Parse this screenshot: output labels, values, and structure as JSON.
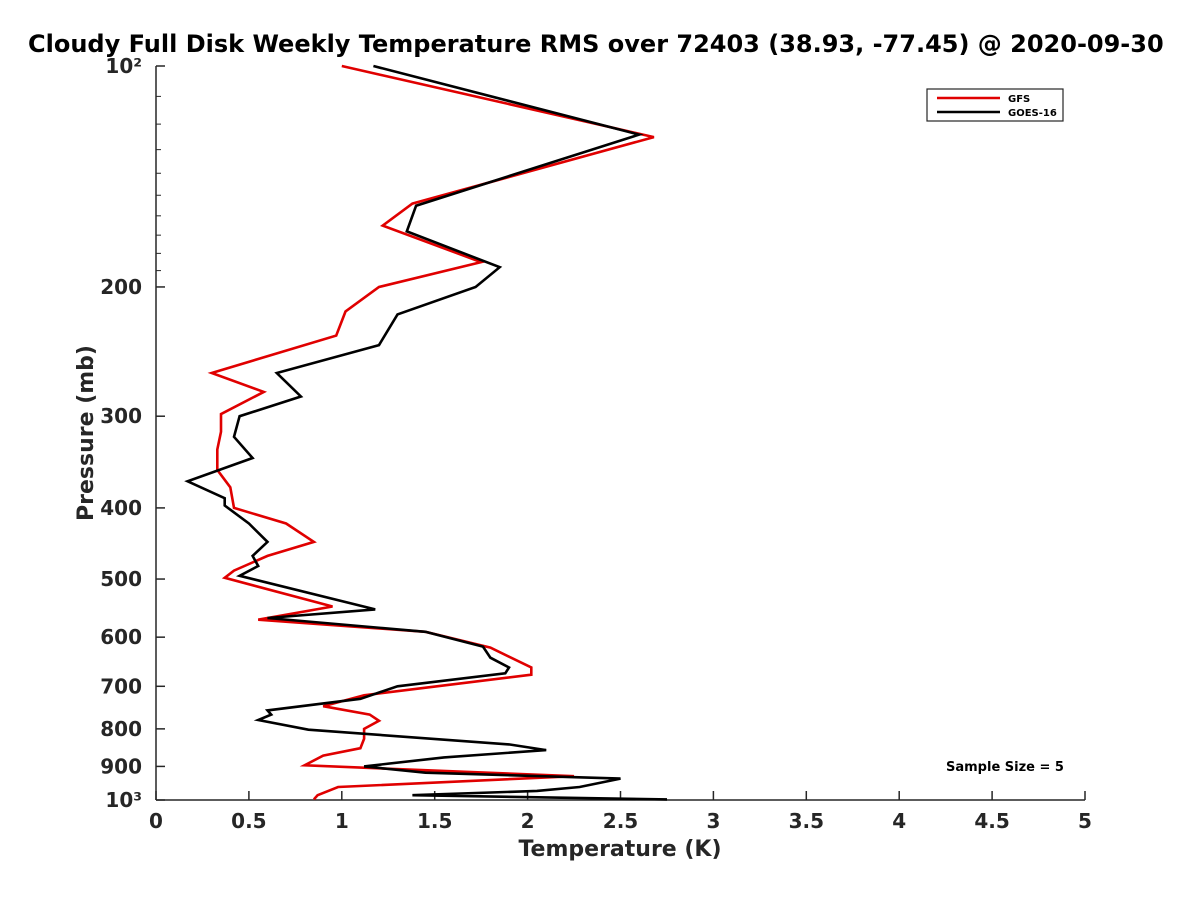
{
  "chart_data": {
    "type": "line",
    "title": "Cloudy Full Disk Weekly Temperature RMS over 72403 (38.93, -77.45) @ 2020-09-30",
    "xlabel": "Temperature (K)",
    "ylabel": "Pressure (mb)",
    "xlim": [
      0,
      5
    ],
    "ylim": [
      1000,
      100
    ],
    "yscale": "log",
    "xticks": [
      0,
      0.5,
      1,
      1.5,
      2,
      2.5,
      3,
      3.5,
      4,
      4.5,
      5
    ],
    "xtick_labels": [
      "0",
      "0.5",
      "1",
      "1.5",
      "2",
      "2.5",
      "3",
      "3.5",
      "4",
      "4.5",
      "5"
    ],
    "yticks": [
      100,
      200,
      300,
      400,
      500,
      600,
      700,
      800,
      900,
      1000
    ],
    "ytick_labels": [
      "10²",
      "200",
      "300",
      "400",
      "500",
      "600",
      "700",
      "800",
      "900",
      "10³"
    ],
    "grid": false,
    "legend_position": "top-right",
    "annotation": "Sample Size = 5",
    "series": [
      {
        "name": "GFS",
        "color": "#e00000",
        "points": [
          [
            1.0,
            100
          ],
          [
            2.68,
            125
          ],
          [
            1.38,
            154
          ],
          [
            1.22,
            165
          ],
          [
            1.75,
            185
          ],
          [
            1.2,
            200
          ],
          [
            1.02,
            216
          ],
          [
            0.97,
            233
          ],
          [
            0.3,
            262
          ],
          [
            0.58,
            278
          ],
          [
            0.35,
            298
          ],
          [
            0.35,
            315
          ],
          [
            0.33,
            333
          ],
          [
            0.33,
            355
          ],
          [
            0.4,
            375
          ],
          [
            0.42,
            400
          ],
          [
            0.7,
            420
          ],
          [
            0.85,
            445
          ],
          [
            0.6,
            465
          ],
          [
            0.42,
            487
          ],
          [
            0.37,
            498
          ],
          [
            0.95,
            545
          ],
          [
            0.55,
            568
          ],
          [
            1.45,
            590
          ],
          [
            1.8,
            620
          ],
          [
            2.02,
            660
          ],
          [
            2.02,
            675
          ],
          [
            1.55,
            698
          ],
          [
            1.12,
            720
          ],
          [
            0.9,
            745
          ],
          [
            1.15,
            765
          ],
          [
            1.2,
            780
          ],
          [
            1.12,
            800
          ],
          [
            1.12,
            825
          ],
          [
            1.1,
            850
          ],
          [
            0.9,
            870
          ],
          [
            0.8,
            897
          ],
          [
            2.25,
            928
          ],
          [
            0.98,
            960
          ],
          [
            0.87,
            985
          ],
          [
            0.85,
            998
          ]
        ]
      },
      {
        "name": "GOES-16",
        "color": "#000000",
        "points": [
          [
            1.17,
            100
          ],
          [
            2.6,
            124
          ],
          [
            1.4,
            155
          ],
          [
            1.35,
            168
          ],
          [
            1.85,
            188
          ],
          [
            1.72,
            200
          ],
          [
            1.3,
            218
          ],
          [
            1.2,
            240
          ],
          [
            0.65,
            262
          ],
          [
            0.78,
            282
          ],
          [
            0.45,
            300
          ],
          [
            0.42,
            320
          ],
          [
            0.52,
            342
          ],
          [
            0.17,
            368
          ],
          [
            0.37,
            388
          ],
          [
            0.37,
            397
          ],
          [
            0.5,
            420
          ],
          [
            0.6,
            445
          ],
          [
            0.52,
            465
          ],
          [
            0.55,
            480
          ],
          [
            0.45,
            495
          ],
          [
            1.18,
            550
          ],
          [
            0.6,
            565
          ],
          [
            1.45,
            590
          ],
          [
            1.76,
            618
          ],
          [
            1.8,
            640
          ],
          [
            1.9,
            660
          ],
          [
            1.88,
            672
          ],
          [
            1.3,
            700
          ],
          [
            1.1,
            728
          ],
          [
            0.6,
            755
          ],
          [
            0.62,
            765
          ],
          [
            0.55,
            778
          ],
          [
            0.82,
            802
          ],
          [
            1.9,
            840
          ],
          [
            2.1,
            855
          ],
          [
            1.55,
            875
          ],
          [
            1.12,
            900
          ],
          [
            1.45,
            918
          ],
          [
            2.5,
            935
          ],
          [
            2.28,
            960
          ],
          [
            2.05,
            972
          ],
          [
            1.38,
            985
          ],
          [
            2.75,
            998
          ]
        ]
      }
    ]
  }
}
